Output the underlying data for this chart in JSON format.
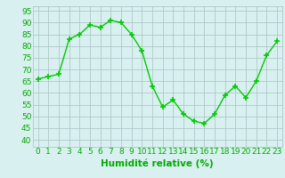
{
  "x": [
    0,
    1,
    2,
    3,
    4,
    5,
    6,
    7,
    8,
    9,
    10,
    11,
    12,
    13,
    14,
    15,
    16,
    17,
    18,
    19,
    20,
    21,
    22,
    23
  ],
  "y": [
    66,
    67,
    68,
    83,
    85,
    89,
    88,
    91,
    90,
    85,
    78,
    63,
    54,
    57,
    51,
    48,
    47,
    51,
    59,
    63,
    58,
    65,
    76,
    82
  ],
  "line_color": "#00cc00",
  "marker_color": "#00cc00",
  "bg_color": "#d8f0f0",
  "grid_color": "#b0c8c8",
  "xlabel": "Humidité relative (%)",
  "xlabel_color": "#00aa00",
  "ylabel_ticks": [
    40,
    45,
    50,
    55,
    60,
    65,
    70,
    75,
    80,
    85,
    90,
    95
  ],
  "ylim": [
    37,
    97
  ],
  "xlim": [
    -0.5,
    23.5
  ],
  "tick_color": "#00aa00",
  "tick_fontsize": 6.5,
  "xlabel_fontsize": 7.5,
  "linewidth": 1.0,
  "markersize": 2.5
}
